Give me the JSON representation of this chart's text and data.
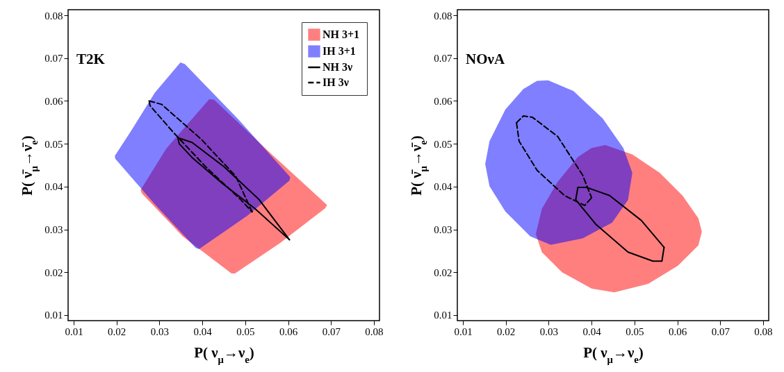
{
  "chart_data": [
    {
      "type": "line",
      "annotations": [
        "T2K"
      ],
      "xlabel": "P( ν$_{μ}$→ν$_{e}$)",
      "ylabel": "P( ν̄$_{μ}$→ν̄$_{e}$)",
      "xlim": [
        0.0087,
        0.0813
      ],
      "ylim": [
        0.0087,
        0.0813
      ],
      "xticks": [
        0.01,
        0.02,
        0.03,
        0.04,
        0.05,
        0.06,
        0.07,
        0.08
      ],
      "yticks": [
        0.01,
        0.02,
        0.03,
        0.04,
        0.05,
        0.06,
        0.07,
        0.08
      ],
      "legend": "top right",
      "series": [
        {
          "name": "NH 3+1",
          "type": "area",
          "color": "#ff0000",
          "x": [
            0.0256,
            0.0316,
            0.0416,
            0.0427,
            0.0559,
            0.0691,
            0.0686,
            0.0581,
            0.0476,
            0.0468,
            0.0354,
            0.0259
          ],
          "values": [
            0.0392,
            0.0489,
            0.0604,
            0.0603,
            0.0478,
            0.0357,
            0.0349,
            0.0268,
            0.0197,
            0.0197,
            0.0284,
            0.0384
          ]
        },
        {
          "name": "IH 3+1",
          "type": "area",
          "color": "#0000ff",
          "x": [
            0.0196,
            0.0235,
            0.0289,
            0.0349,
            0.0359,
            0.0484,
            0.0605,
            0.0603,
            0.0505,
            0.0392,
            0.0384,
            0.0289,
            0.0197
          ],
          "values": [
            0.0472,
            0.0532,
            0.0619,
            0.069,
            0.0686,
            0.0557,
            0.0422,
            0.0414,
            0.0332,
            0.0254,
            0.0257,
            0.0359,
            0.0465
          ]
        },
        {
          "name": "NH 3ν",
          "color": "#000000",
          "line_style": "solid",
          "x": [
            0.0343,
            0.0376,
            0.0451,
            0.0532,
            0.0603
          ],
          "values": [
            0.0514,
            0.0503,
            0.0446,
            0.037,
            0.0276
          ]
        },
        {
          "color": "#000000",
          "line_style": "solid",
          "x": [
            0.0343,
            0.0346,
            0.0376,
            0.0446,
            0.0522,
            0.0603
          ],
          "values": [
            0.0514,
            0.05,
            0.0468,
            0.0408,
            0.0349,
            0.0276
          ]
        },
        {
          "name": "IH 3ν",
          "color": "#000000",
          "line_style": "dashed",
          "x": [
            0.0276,
            0.0305,
            0.0397,
            0.0478,
            0.0516
          ],
          "values": [
            0.06,
            0.0592,
            0.0511,
            0.0424,
            0.0341
          ]
        },
        {
          "color": "#000000",
          "line_style": "dashed",
          "x": [
            0.0276,
            0.0278,
            0.0332,
            0.0408,
            0.0489,
            0.0516
          ],
          "values": [
            0.06,
            0.0589,
            0.0527,
            0.0446,
            0.037,
            0.0341
          ]
        }
      ]
    },
    {
      "type": "line",
      "annotations": [
        "NOνA"
      ],
      "xlabel": "P( ν$_{μ}$→ν$_{e}$)",
      "ylabel": "P( ν̄$_{μ}$→ν̄$_{e}$)",
      "xlim": [
        0.0087,
        0.0813
      ],
      "ylim": [
        0.0087,
        0.0813
      ],
      "xticks": [
        0.01,
        0.02,
        0.03,
        0.04,
        0.05,
        0.06,
        0.07,
        0.08
      ],
      "yticks": [
        0.01,
        0.02,
        0.03,
        0.04,
        0.05,
        0.06,
        0.07,
        0.08
      ],
      "series": [
        {
          "type": "area",
          "color": "#ff0000",
          "x": [
            0.0432,
            0.0495,
            0.0559,
            0.0612,
            0.0649,
            0.0657,
            0.0649,
            0.0601,
            0.0532,
            0.0453,
            0.04,
            0.0331,
            0.0284,
            0.027,
            0.0284,
            0.0321,
            0.0368,
            0.04
          ],
          "values": [
            0.0497,
            0.0475,
            0.0432,
            0.0379,
            0.0326,
            0.0295,
            0.0263,
            0.0215,
            0.0173,
            0.0153,
            0.0162,
            0.02,
            0.0247,
            0.0289,
            0.0348,
            0.0411,
            0.0469,
            0.049
          ]
        },
        {
          "type": "area",
          "color": "#0000ff",
          "x": [
            0.0299,
            0.0358,
            0.0426,
            0.0474,
            0.0495,
            0.0485,
            0.0448,
            0.0379,
            0.0305,
            0.0257,
            0.0199,
            0.0162,
            0.0152,
            0.0162,
            0.0199,
            0.0241,
            0.0273
          ],
          "values": [
            0.0648,
            0.0623,
            0.0559,
            0.049,
            0.0432,
            0.0369,
            0.0316,
            0.0279,
            0.0264,
            0.0284,
            0.0342,
            0.0401,
            0.0453,
            0.0506,
            0.058,
            0.0628,
            0.0647
          ]
        },
        {
          "color": "#000000",
          "line_style": "solid",
          "x": [
            0.0363,
            0.0368,
            0.0389,
            0.0442,
            0.0516,
            0.0569
          ],
          "values": [
            0.0369,
            0.0398,
            0.0398,
            0.0379,
            0.0321,
            0.0258
          ]
        },
        {
          "color": "#000000",
          "line_style": "solid",
          "x": [
            0.0363,
            0.0411,
            0.0485,
            0.0543,
            0.0564,
            0.0569
          ],
          "values": [
            0.0369,
            0.0311,
            0.0247,
            0.0226,
            0.0226,
            0.0258
          ]
        },
        {
          "color": "#000000",
          "line_style": "dashed",
          "x": [
            0.0225,
            0.0241,
            0.0262,
            0.0321,
            0.0379,
            0.04
          ],
          "values": [
            0.0549,
            0.0565,
            0.0562,
            0.0517,
            0.0427,
            0.0374
          ]
        },
        {
          "color": "#000000",
          "line_style": "dashed",
          "x": [
            0.0225,
            0.0231,
            0.0273,
            0.0337,
            0.0384,
            0.04
          ],
          "values": [
            0.0549,
            0.0506,
            0.0438,
            0.0379,
            0.0356,
            0.0374
          ]
        }
      ]
    }
  ]
}
